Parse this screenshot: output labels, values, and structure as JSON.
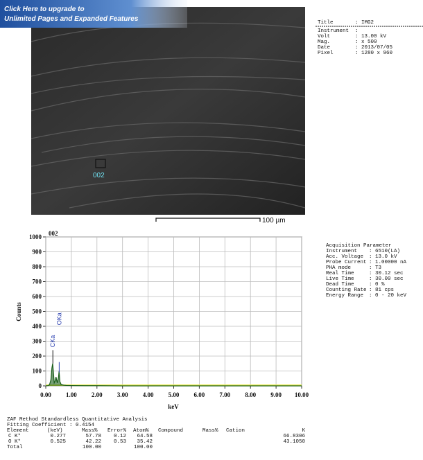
{
  "banner": {
    "lines": [
      "Click Here to upgrade to",
      "Unlimited Pages and Expanded Features"
    ]
  },
  "image": {
    "marker_label": "002",
    "scale_bar": "100 µm"
  },
  "info": {
    "rows": [
      [
        "Title",
        ": IMG2"
      ],
      [
        "Instrument",
        ":"
      ],
      [
        "Volt",
        ": 13.00 kV"
      ],
      [
        "Mag.",
        ": x 500"
      ],
      [
        "Date",
        ": 2013/07/05"
      ],
      [
        "Pixel",
        ": 1280 x 960"
      ]
    ]
  },
  "acquisition": {
    "title": "Acquisition Parameter",
    "rows": [
      [
        "Instrument",
        ": 6510(LA)"
      ],
      [
        "Acc. Voltage",
        ": 13.0 kV"
      ],
      [
        "Probe Current",
        ": 1.00000 nA"
      ],
      [
        "PHA mode",
        ": T3"
      ],
      [
        "Real Time",
        ": 30.12 sec"
      ],
      [
        "Live Time",
        ": 30.00 sec"
      ],
      [
        "Dead Time",
        ": 0 %"
      ],
      [
        "Counting Rate",
        ": 81 cps"
      ],
      [
        "Energy Range",
        ": 0 - 20 keV"
      ]
    ]
  },
  "zaf": {
    "title": "ZAF Method Standardless Quantitative Analysis",
    "fitting": "Fitting Coefficient : 0.4154",
    "header": {
      "element": "Element",
      "kev": "(keV)",
      "mass": "Mass%",
      "error": "Error%",
      "atom": "Atom%",
      "compound": "Compound",
      "mass2": "Mass%",
      "cation": "Cation",
      "k": "K"
    },
    "rows": [
      {
        "element": "C K*",
        "kev": "0.277",
        "mass": "57.78",
        "error": "0.12",
        "atom": "64.58",
        "k": "66.8306"
      },
      {
        "element": "O K*",
        "kev": "0.525",
        "mass": "42.22",
        "error": "0.53",
        "atom": "35.42",
        "k": "43.1050"
      },
      {
        "element": "Total",
        "mass": "100.00",
        "atom": "100.00"
      }
    ]
  },
  "chart_data": {
    "type": "line",
    "title": "002",
    "x_label": "keV",
    "y_label": "Counts",
    "color": "#1a5e1a",
    "x": [
      0,
      0.1,
      0.15,
      0.2,
      0.24,
      0.27,
      0.3,
      0.33,
      0.36,
      0.4,
      0.45,
      0.5,
      0.52,
      0.55,
      0.6,
      0.7,
      0.8,
      1,
      1.5,
      2,
      3,
      4,
      5,
      6,
      7,
      8,
      9,
      10
    ],
    "values": [
      0,
      2,
      10,
      40,
      120,
      150,
      90,
      20,
      30,
      60,
      20,
      60,
      100,
      30,
      10,
      5,
      3,
      2,
      1,
      1,
      0,
      0,
      0,
      0,
      0,
      0,
      0,
      0
    ],
    "annotations": [
      {
        "text": "CKa",
        "x": 0.277
      },
      {
        "text": "OKa",
        "x": 0.525
      }
    ],
    "xlim": [
      0,
      10
    ],
    "ylim": [
      0,
      1000
    ],
    "xticks": [
      {
        "value": 0,
        "label": "0.00"
      },
      {
        "value": 1,
        "label": "1.00"
      },
      {
        "value": 2,
        "label": "2.00"
      },
      {
        "value": 3,
        "label": "3.00"
      },
      {
        "value": 4,
        "label": "4.00"
      },
      {
        "value": 5,
        "label": "5.00"
      },
      {
        "value": 6,
        "label": "6.00"
      },
      {
        "value": 7,
        "label": "7.00"
      },
      {
        "value": 8,
        "label": "8.00"
      },
      {
        "value": 9,
        "label": "9.00"
      },
      {
        "value": 10,
        "label": "10.00"
      }
    ],
    "yticks": [
      0,
      100,
      200,
      300,
      400,
      500,
      600,
      700,
      800,
      900,
      1000
    ],
    "grid": true
  }
}
